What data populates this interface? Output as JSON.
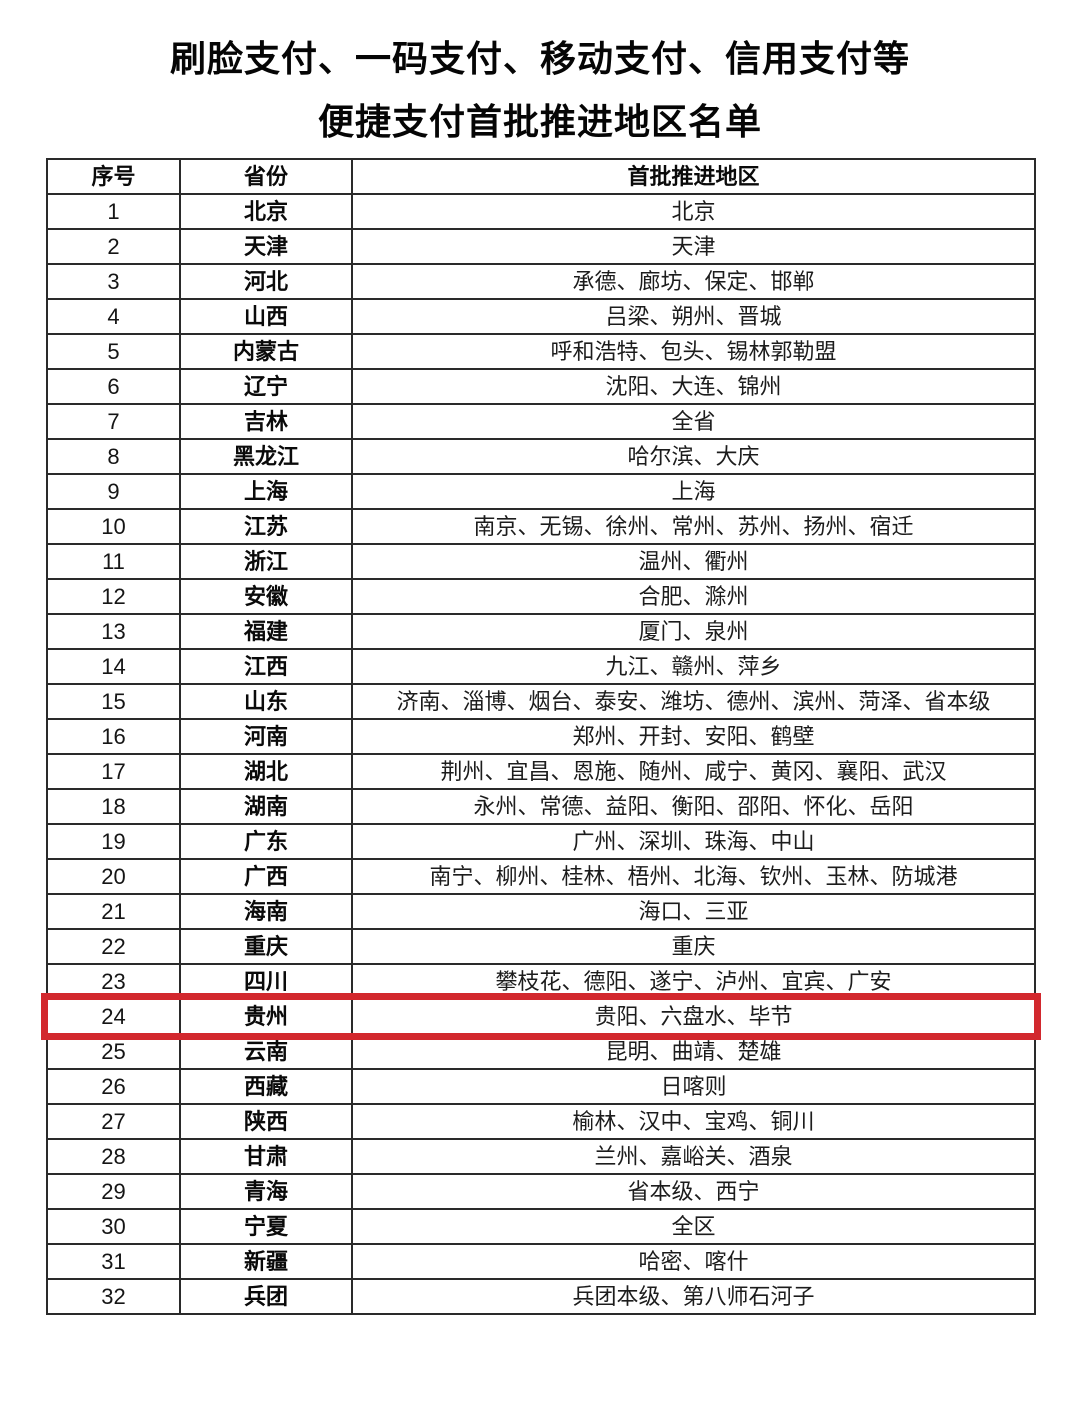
{
  "page": {
    "background_color": "#ffffff",
    "border_color": "#2a2a2a"
  },
  "title": {
    "line1": "刷脸支付、一码支付、移动支付、信用支付等",
    "line2": "便捷支付首批推进地区名单"
  },
  "table": {
    "headers": [
      "序号",
      "省份",
      "首批推进地区"
    ],
    "rows": [
      {
        "seq": "1",
        "province": "北京",
        "regions": "北京"
      },
      {
        "seq": "2",
        "province": "天津",
        "regions": "天津"
      },
      {
        "seq": "3",
        "province": "河北",
        "regions": "承德、廊坊、保定、邯郸"
      },
      {
        "seq": "4",
        "province": "山西",
        "regions": "吕梁、朔州、晋城"
      },
      {
        "seq": "5",
        "province": "内蒙古",
        "regions": "呼和浩特、包头、锡林郭勒盟"
      },
      {
        "seq": "6",
        "province": "辽宁",
        "regions": "沈阳、大连、锦州"
      },
      {
        "seq": "7",
        "province": "吉林",
        "regions": "全省"
      },
      {
        "seq": "8",
        "province": "黑龙江",
        "regions": "哈尔滨、大庆"
      },
      {
        "seq": "9",
        "province": "上海",
        "regions": "上海"
      },
      {
        "seq": "10",
        "province": "江苏",
        "regions": "南京、无锡、徐州、常州、苏州、扬州、宿迁"
      },
      {
        "seq": "11",
        "province": "浙江",
        "regions": "温州、衢州"
      },
      {
        "seq": "12",
        "province": "安徽",
        "regions": "合肥、滁州"
      },
      {
        "seq": "13",
        "province": "福建",
        "regions": "厦门、泉州"
      },
      {
        "seq": "14",
        "province": "江西",
        "regions": "九江、赣州、萍乡"
      },
      {
        "seq": "15",
        "province": "山东",
        "regions": "济南、淄博、烟台、泰安、潍坊、德州、滨州、菏泽、省本级"
      },
      {
        "seq": "16",
        "province": "河南",
        "regions": "郑州、开封、安阳、鹤壁"
      },
      {
        "seq": "17",
        "province": "湖北",
        "regions": "荆州、宜昌、恩施、随州、咸宁、黄冈、襄阳、武汉"
      },
      {
        "seq": "18",
        "province": "湖南",
        "regions": "永州、常德、益阳、衡阳、邵阳、怀化、岳阳"
      },
      {
        "seq": "19",
        "province": "广东",
        "regions": "广州、深圳、珠海、中山"
      },
      {
        "seq": "20",
        "province": "广西",
        "regions": "南宁、柳州、桂林、梧州、北海、钦州、玉林、防城港"
      },
      {
        "seq": "21",
        "province": "海南",
        "regions": "海口、三亚"
      },
      {
        "seq": "22",
        "province": "重庆",
        "regions": "重庆"
      },
      {
        "seq": "23",
        "province": "四川",
        "regions": "攀枝花、德阳、遂宁、泸州、宜宾、广安"
      },
      {
        "seq": "24",
        "province": "贵州",
        "regions": "贵阳、六盘水、毕节"
      },
      {
        "seq": "25",
        "province": "云南",
        "regions": "昆明、曲靖、楚雄"
      },
      {
        "seq": "26",
        "province": "西藏",
        "regions": "日喀则"
      },
      {
        "seq": "27",
        "province": "陕西",
        "regions": "榆林、汉中、宝鸡、铜川"
      },
      {
        "seq": "28",
        "province": "甘肃",
        "regions": "兰州、嘉峪关、酒泉"
      },
      {
        "seq": "29",
        "province": "青海",
        "regions": "省本级、西宁"
      },
      {
        "seq": "30",
        "province": "宁夏",
        "regions": "全区"
      },
      {
        "seq": "31",
        "province": "新疆",
        "regions": "哈密、喀什"
      },
      {
        "seq": "32",
        "province": "兵团",
        "regions": "兵团本级、第八师石河子"
      }
    ]
  },
  "highlight": {
    "row_seq": "24",
    "box_color": "#d2282e"
  }
}
